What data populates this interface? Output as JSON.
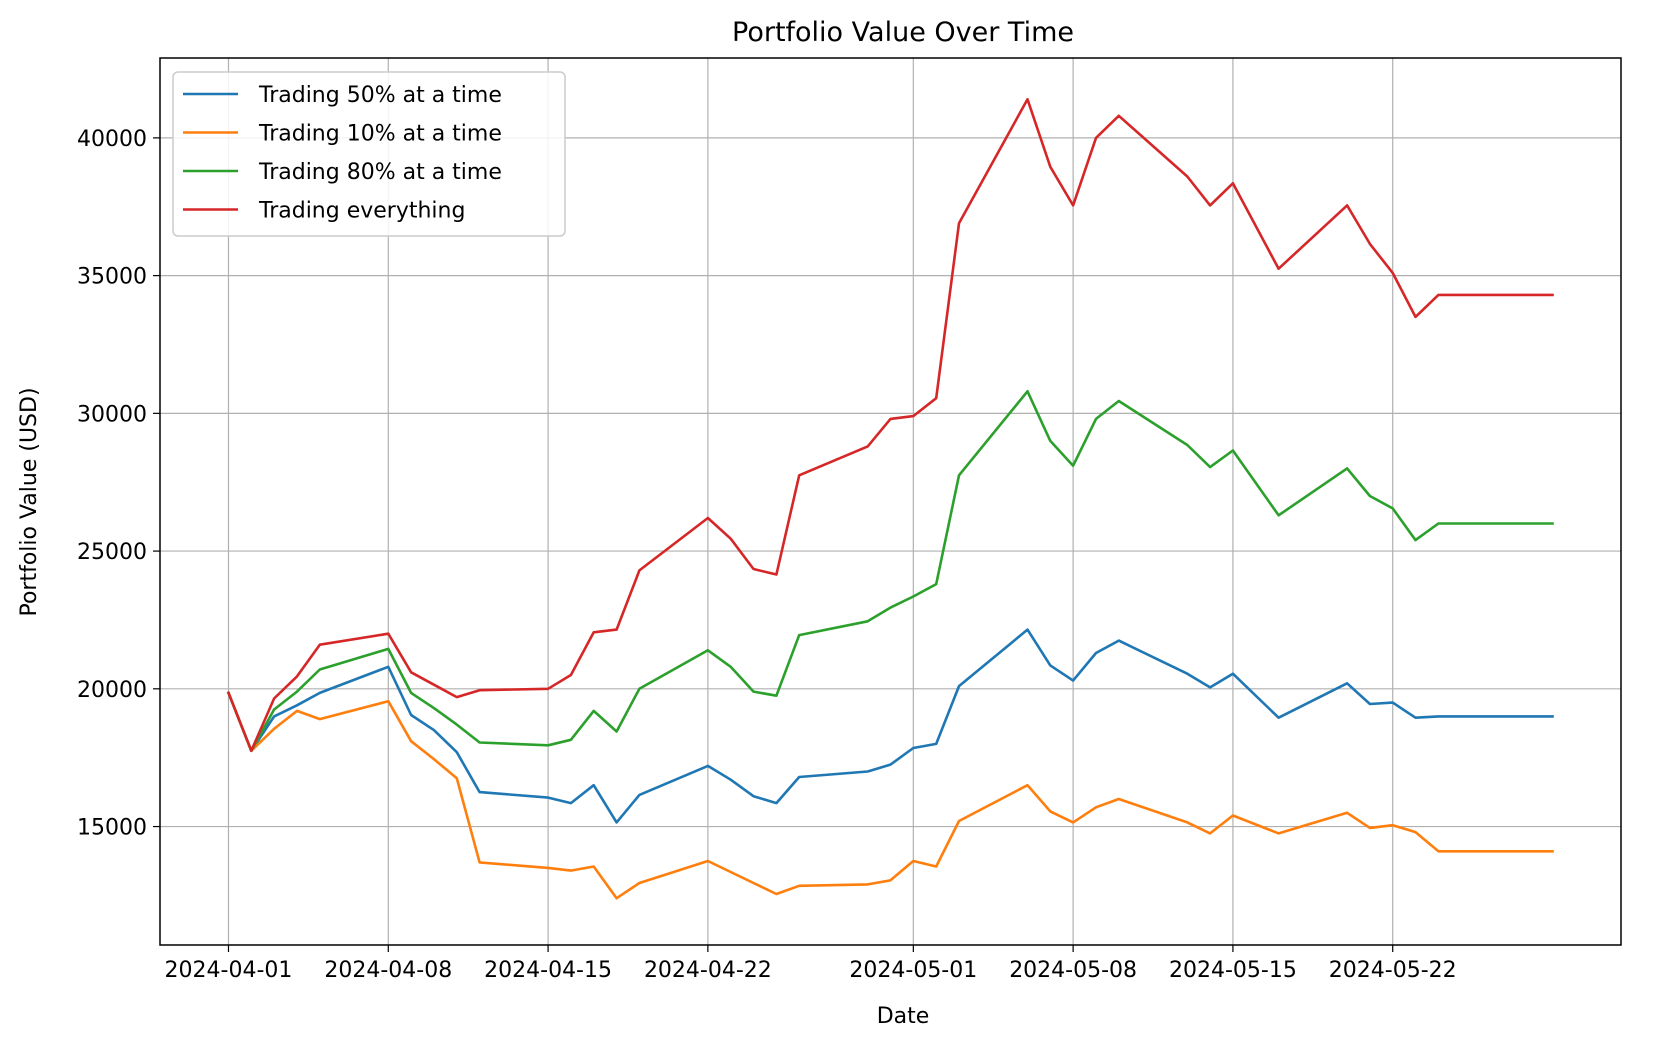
{
  "chart_data": {
    "type": "line",
    "title": "Portfolio Value Over Time",
    "xlabel": "Date",
    "ylabel": "Portfolio Value (USD)",
    "grid": true,
    "legend_position": "top-left",
    "xlim": [
      "2024-03-29",
      "2024-06-01"
    ],
    "ylim": [
      10700,
      42900
    ],
    "x_ticks": [
      "2024-04-01",
      "2024-04-08",
      "2024-04-15",
      "2024-04-22",
      "2024-05-01",
      "2024-05-08",
      "2024-05-15",
      "2024-05-22"
    ],
    "y_ticks": [
      15000,
      20000,
      25000,
      30000,
      35000,
      40000
    ],
    "x": [
      "2024-04-01",
      "2024-04-02",
      "2024-04-03",
      "2024-04-04",
      "2024-04-05",
      "2024-04-08",
      "2024-04-09",
      "2024-04-10",
      "2024-04-11",
      "2024-04-12",
      "2024-04-15",
      "2024-04-16",
      "2024-04-17",
      "2024-04-18",
      "2024-04-19",
      "2024-04-22",
      "2024-04-23",
      "2024-04-24",
      "2024-04-25",
      "2024-04-26",
      "2024-04-29",
      "2024-04-30",
      "2024-05-01",
      "2024-05-02",
      "2024-05-03",
      "2024-05-06",
      "2024-05-07",
      "2024-05-08",
      "2024-05-09",
      "2024-05-10",
      "2024-05-13",
      "2024-05-14",
      "2024-05-15",
      "2024-05-17",
      "2024-05-20",
      "2024-05-21",
      "2024-05-22",
      "2024-05-23",
      "2024-05-24",
      "2024-05-29"
    ],
    "series": [
      {
        "name": "Trading 50% at a time",
        "color": "#1f77b4",
        "values": [
          19850,
          17750,
          19000,
          19400,
          19850,
          20800,
          19050,
          18500,
          17700,
          16250,
          16050,
          15850,
          16500,
          15150,
          16150,
          17200,
          16700,
          16100,
          15850,
          16800,
          17000,
          17250,
          17850,
          18000,
          20100,
          22150,
          20850,
          20300,
          21300,
          21750,
          20550,
          20050,
          20550,
          18950,
          20200,
          19450,
          19500,
          18950,
          19000,
          19000
        ]
      },
      {
        "name": "Trading 10% at a time",
        "color": "#ff7f0e",
        "values": [
          19850,
          17750,
          18550,
          19200,
          18900,
          19550,
          18100,
          17450,
          16750,
          13700,
          13500,
          13400,
          13550,
          12400,
          12950,
          13750,
          13350,
          12950,
          12550,
          12850,
          12900,
          13050,
          13750,
          13550,
          15200,
          16500,
          15550,
          15150,
          15700,
          16000,
          15150,
          14750,
          15400,
          14750,
          15500,
          14950,
          15050,
          14800,
          14100,
          14100
        ]
      },
      {
        "name": "Trading 80% at a time",
        "color": "#2ca02c",
        "values": [
          19850,
          17750,
          19250,
          19900,
          20700,
          21450,
          19850,
          19300,
          18700,
          18050,
          17950,
          18150,
          19200,
          18450,
          20000,
          21400,
          20800,
          19900,
          19750,
          21950,
          22450,
          22950,
          23350,
          23800,
          27750,
          30800,
          29000,
          28100,
          29800,
          30450,
          28850,
          28050,
          28650,
          26300,
          28000,
          27000,
          26550,
          25400,
          26000,
          26000
        ]
      },
      {
        "name": "Trading everything",
        "color": "#d62728",
        "values": [
          19850,
          17750,
          19650,
          20450,
          21600,
          22000,
          20600,
          20150,
          19700,
          19950,
          20000,
          20500,
          22050,
          22150,
          24300,
          26200,
          25450,
          24350,
          24150,
          27750,
          28800,
          29800,
          29900,
          30550,
          36900,
          41400,
          38950,
          37550,
          40000,
          40800,
          38600,
          37550,
          38350,
          35250,
          37550,
          36150,
          35100,
          33500,
          34300,
          34300
        ]
      }
    ]
  }
}
